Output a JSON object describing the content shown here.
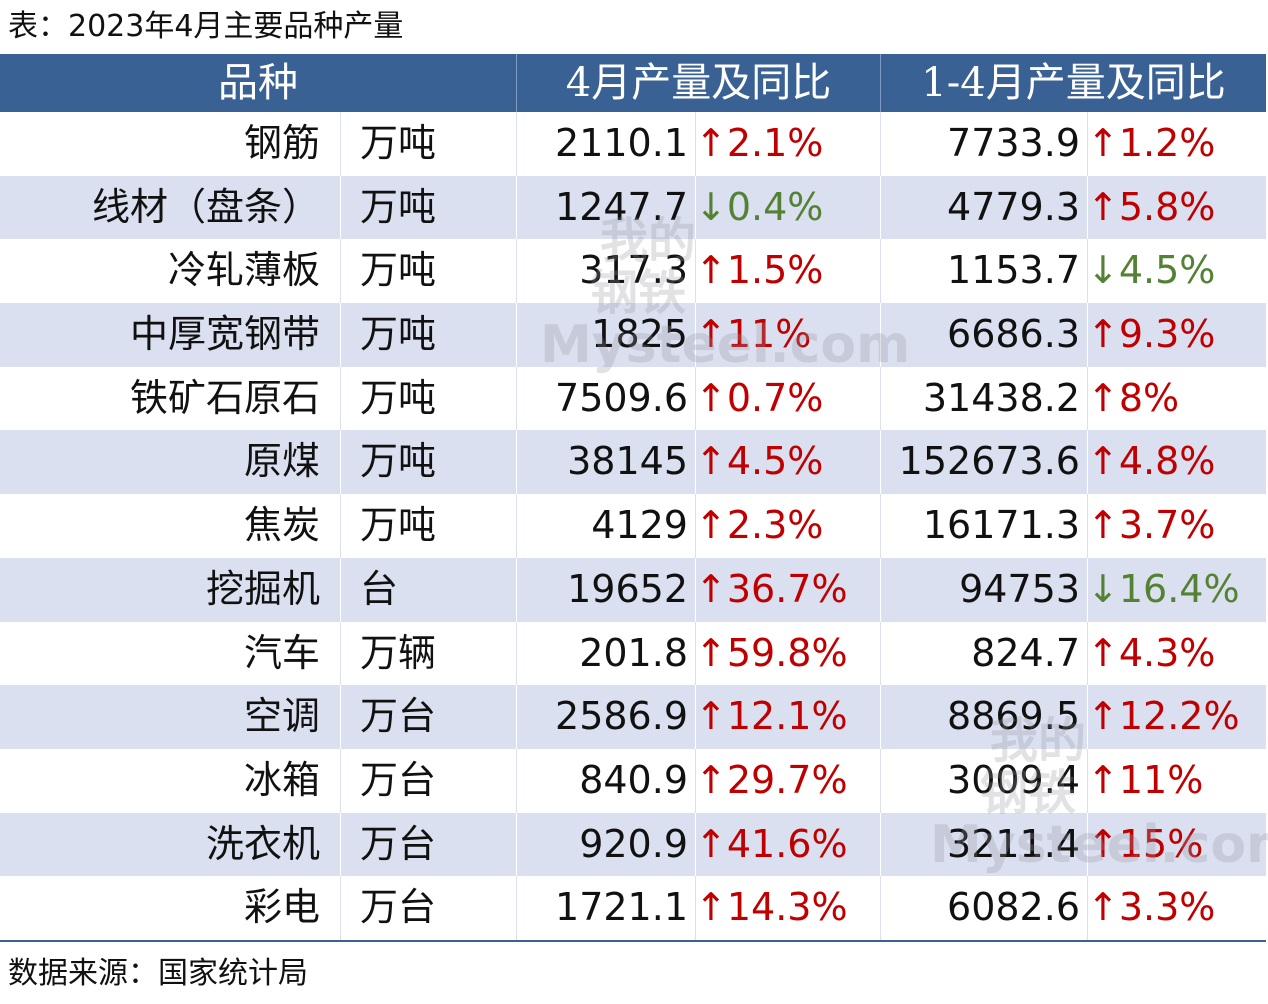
{
  "caption": "表：2023年4月主要品种产量",
  "header": {
    "variety": "品种",
    "april": "4月产量及同比",
    "cumulative": "1-4月产量及同比"
  },
  "rows": [
    {
      "name": "钢筋",
      "unit": "万吨",
      "apr_value": "2110.1",
      "apr_dir": "up",
      "apr_change": "↑2.1%",
      "cum_value": "7733.9",
      "cum_dir": "up",
      "cum_change": "↑1.2%"
    },
    {
      "name": "线材（盘条）",
      "unit": "万吨",
      "apr_value": "1247.7",
      "apr_dir": "down",
      "apr_change": "↓0.4%",
      "cum_value": "4779.3",
      "cum_dir": "up",
      "cum_change": "↑5.8%"
    },
    {
      "name": "冷轧薄板",
      "unit": "万吨",
      "apr_value": "317.3",
      "apr_dir": "up",
      "apr_change": "↑1.5%",
      "cum_value": "1153.7",
      "cum_dir": "down",
      "cum_change": "↓4.5%"
    },
    {
      "name": "中厚宽钢带",
      "unit": "万吨",
      "apr_value": "1825",
      "apr_dir": "up",
      "apr_change": "↑11%",
      "cum_value": "6686.3",
      "cum_dir": "up",
      "cum_change": "↑9.3%"
    },
    {
      "name": "铁矿石原石",
      "unit": "万吨",
      "apr_value": "7509.6",
      "apr_dir": "up",
      "apr_change": "↑0.7%",
      "cum_value": "31438.2",
      "cum_dir": "up",
      "cum_change": "↑8%"
    },
    {
      "name": "原煤",
      "unit": "万吨",
      "apr_value": "38145",
      "apr_dir": "up",
      "apr_change": "↑4.5%",
      "cum_value": "152673.6",
      "cum_dir": "up",
      "cum_change": "↑4.8%"
    },
    {
      "name": "焦炭",
      "unit": "万吨",
      "apr_value": "4129",
      "apr_dir": "up",
      "apr_change": "↑2.3%",
      "cum_value": "16171.3",
      "cum_dir": "up",
      "cum_change": "↑3.7%"
    },
    {
      "name": "挖掘机",
      "unit": "台",
      "apr_value": "19652",
      "apr_dir": "up",
      "apr_change": "↑36.7%",
      "cum_value": "94753",
      "cum_dir": "down",
      "cum_change": "↓16.4%"
    },
    {
      "name": "汽车",
      "unit": "万辆",
      "apr_value": "201.8",
      "apr_dir": "up",
      "apr_change": "↑59.8%",
      "cum_value": "824.7",
      "cum_dir": "up",
      "cum_change": "↑4.3%"
    },
    {
      "name": "空调",
      "unit": "万台",
      "apr_value": "2586.9",
      "apr_dir": "up",
      "apr_change": "↑12.1%",
      "cum_value": "8869.5",
      "cum_dir": "up",
      "cum_change": "↑12.2%"
    },
    {
      "name": "冰箱",
      "unit": "万台",
      "apr_value": "840.9",
      "apr_dir": "up",
      "apr_change": "↑29.7%",
      "cum_value": "3009.4",
      "cum_dir": "up",
      "cum_change": "↑11%"
    },
    {
      "name": "洗衣机",
      "unit": "万台",
      "apr_value": "920.9",
      "apr_dir": "up",
      "apr_change": "↑41.6%",
      "cum_value": "3211.4",
      "cum_dir": "up",
      "cum_change": "↑15%"
    },
    {
      "name": "彩电",
      "unit": "万台",
      "apr_value": "1721.1",
      "apr_dir": "up",
      "apr_change": "↑14.3%",
      "cum_value": "6082.6",
      "cum_dir": "up",
      "cum_change": "↑3.3%"
    }
  ],
  "source": "数据来源：国家统计局",
  "colors": {
    "header_bg": "#3a6194",
    "alt_row_bg": "#dae0ef",
    "up": "#c00000",
    "down": "#548235"
  }
}
